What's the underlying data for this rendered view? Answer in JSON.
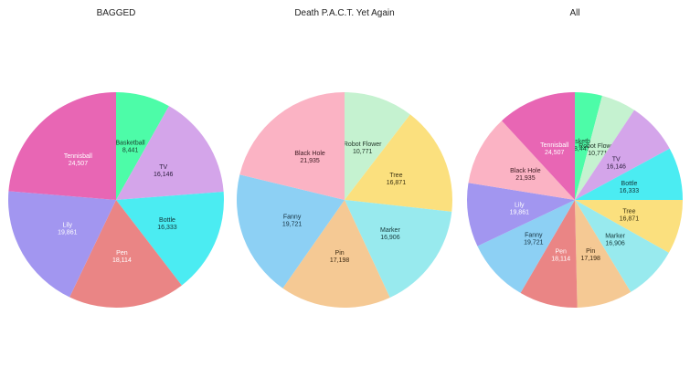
{
  "chart_data": [
    {
      "type": "pie",
      "title": "BAGGED",
      "slices": [
        {
          "label": "Basketball",
          "value": 8441,
          "value_text": "8,441",
          "color": "#4dfca8",
          "label_color": "#1a3d2c"
        },
        {
          "label": "TV",
          "value": 16146,
          "value_text": "16,146",
          "color": "#d4a5ea",
          "label_color": "#2e2040"
        },
        {
          "label": "Bottle",
          "value": 16333,
          "value_text": "16,333",
          "color": "#4becf2",
          "label_color": "#11353a"
        },
        {
          "label": "Pen",
          "value": 18114,
          "value_text": "18,114",
          "color": "#ea8585",
          "label_color": "#ffffff"
        },
        {
          "label": "Lily",
          "value": 19861,
          "value_text": "19,861",
          "color": "#a296f0",
          "label_color": "#ffffff"
        },
        {
          "label": "Tennisball",
          "value": 24507,
          "value_text": "24,507",
          "color": "#e866b4",
          "label_color": "#ffffff"
        }
      ]
    },
    {
      "type": "pie",
      "title": "Death P.A.C.T. Yet Again",
      "slices": [
        {
          "label": "Robot Flower",
          "value": 10771,
          "value_text": "10,771",
          "color": "#c5f2d0",
          "label_color": "#1f3326"
        },
        {
          "label": "Tree",
          "value": 16871,
          "value_text": "16,871",
          "color": "#fbe07e",
          "label_color": "#3a3010"
        },
        {
          "label": "Marker",
          "value": 16906,
          "value_text": "16,906",
          "color": "#98eaee",
          "label_color": "#15383a"
        },
        {
          "label": "Pin",
          "value": 17198,
          "value_text": "17,198",
          "color": "#f5c994",
          "label_color": "#3d2a12"
        },
        {
          "label": "Fanny",
          "value": 19721,
          "value_text": "19,721",
          "color": "#8dd0f4",
          "label_color": "#14303f"
        },
        {
          "label": "Black Hole",
          "value": 21935,
          "value_text": "21,935",
          "color": "#fbb3c4",
          "label_color": "#3d1a22"
        }
      ]
    },
    {
      "type": "pie",
      "title": "All",
      "slices": [
        {
          "label": "Basketball",
          "value": 8441,
          "value_text": "8,441",
          "color": "#4dfca8",
          "label_color": "#1a3d2c"
        },
        {
          "label": "Robot Flower",
          "value": 10771,
          "value_text": "10,771",
          "color": "#c5f2d0",
          "label_color": "#1f3326"
        },
        {
          "label": "TV",
          "value": 16146,
          "value_text": "16,146",
          "color": "#d4a5ea",
          "label_color": "#2e2040"
        },
        {
          "label": "Bottle",
          "value": 16333,
          "value_text": "16,333",
          "color": "#4becf2",
          "label_color": "#11353a"
        },
        {
          "label": "Tree",
          "value": 16871,
          "value_text": "16,871",
          "color": "#fbe07e",
          "label_color": "#3a3010"
        },
        {
          "label": "Marker",
          "value": 16906,
          "value_text": "16,906",
          "color": "#98eaee",
          "label_color": "#15383a"
        },
        {
          "label": "Pin",
          "value": 17198,
          "value_text": "17,198",
          "color": "#f5c994",
          "label_color": "#3d2a12"
        },
        {
          "label": "Pen",
          "value": 18114,
          "value_text": "18,114",
          "color": "#ea8585",
          "label_color": "#ffffff"
        },
        {
          "label": "Fanny",
          "value": 19721,
          "value_text": "19,721",
          "color": "#8dd0f4",
          "label_color": "#14303f"
        },
        {
          "label": "Lily",
          "value": 19861,
          "value_text": "19,861",
          "color": "#a296f0",
          "label_color": "#ffffff"
        },
        {
          "label": "Black Hole",
          "value": 21935,
          "value_text": "21,935",
          "color": "#fbb3c4",
          "label_color": "#3d1a22"
        },
        {
          "label": "Tennisball",
          "value": 24507,
          "value_text": "24,507",
          "color": "#e866b4",
          "label_color": "#ffffff"
        }
      ]
    }
  ]
}
